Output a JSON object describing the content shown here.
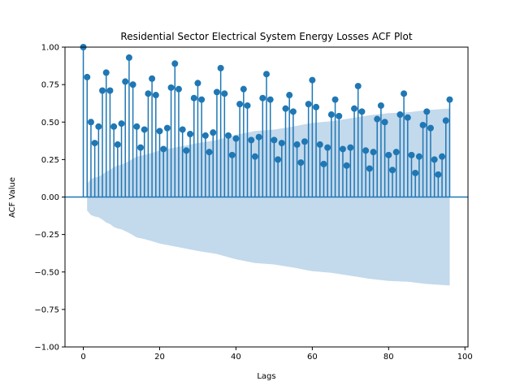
{
  "chart_data": {
    "type": "stem",
    "title": "Residential Sector Electrical System Energy Losses ACF Plot",
    "xlabel": "Lags",
    "ylabel": "ACF Value",
    "xlim": [
      -4.8,
      100.8
    ],
    "ylim": [
      -1.0,
      1.0
    ],
    "xticks": [
      0,
      20,
      40,
      60,
      80,
      100
    ],
    "yticks": [
      -1.0,
      -0.75,
      -0.5,
      -0.25,
      0.0,
      0.25,
      0.5,
      0.75,
      1.0
    ],
    "xtick_labels": [
      "0",
      "20",
      "40",
      "60",
      "80",
      "100"
    ],
    "ytick_labels": [
      "−1.00",
      "−0.75",
      "−0.50",
      "−0.25",
      "0.00",
      "0.25",
      "0.50",
      "0.75",
      "1.00"
    ],
    "lags": [
      0,
      1,
      2,
      3,
      4,
      5,
      6,
      7,
      8,
      9,
      10,
      11,
      12,
      13,
      14,
      15,
      16,
      17,
      18,
      19,
      20,
      21,
      22,
      23,
      24,
      25,
      26,
      27,
      28,
      29,
      30,
      31,
      32,
      33,
      34,
      35,
      36,
      37,
      38,
      39,
      40,
      41,
      42,
      43,
      44,
      45,
      46,
      47,
      48,
      49,
      50,
      51,
      52,
      53,
      54,
      55,
      56,
      57,
      58,
      59,
      60,
      61,
      62,
      63,
      64,
      65,
      66,
      67,
      68,
      69,
      70,
      71,
      72,
      73,
      74,
      75,
      76,
      77,
      78,
      79,
      80,
      81,
      82,
      83,
      84,
      85,
      86,
      87,
      88,
      89,
      90,
      91,
      92,
      93,
      94,
      95,
      96
    ],
    "acf": [
      1.0,
      0.8,
      0.5,
      0.36,
      0.47,
      0.71,
      0.83,
      0.71,
      0.47,
      0.35,
      0.49,
      0.77,
      0.93,
      0.75,
      0.47,
      0.33,
      0.45,
      0.69,
      0.79,
      0.68,
      0.44,
      0.32,
      0.46,
      0.73,
      0.89,
      0.72,
      0.45,
      0.31,
      0.42,
      0.66,
      0.76,
      0.65,
      0.41,
      0.3,
      0.43,
      0.7,
      0.86,
      0.69,
      0.41,
      0.28,
      0.39,
      0.62,
      0.72,
      0.61,
      0.38,
      0.27,
      0.4,
      0.66,
      0.82,
      0.65,
      0.38,
      0.25,
      0.36,
      0.59,
      0.68,
      0.57,
      0.35,
      0.23,
      0.37,
      0.62,
      0.78,
      0.6,
      0.35,
      0.22,
      0.33,
      0.55,
      0.65,
      0.54,
      0.32,
      0.21,
      0.33,
      0.59,
      0.74,
      0.57,
      0.31,
      0.19,
      0.3,
      0.52,
      0.61,
      0.5,
      0.28,
      0.18,
      0.3,
      0.55,
      0.69,
      0.53,
      0.28,
      0.16,
      0.27,
      0.48,
      0.57,
      0.46,
      0.25,
      0.15,
      0.27,
      0.51,
      0.65
    ],
    "confidence_band": {
      "lags": [
        1,
        2,
        3,
        4,
        5,
        6,
        7,
        8,
        9,
        10,
        12,
        14,
        16,
        18,
        20,
        25,
        30,
        35,
        40,
        45,
        50,
        55,
        60,
        65,
        70,
        75,
        80,
        85,
        90,
        96
      ],
      "upper": [
        0.09,
        0.12,
        0.13,
        0.135,
        0.15,
        0.17,
        0.18,
        0.2,
        0.21,
        0.215,
        0.24,
        0.27,
        0.28,
        0.295,
        0.31,
        0.335,
        0.36,
        0.38,
        0.415,
        0.44,
        0.45,
        0.47,
        0.495,
        0.505,
        0.525,
        0.545,
        0.56,
        0.565,
        0.58,
        0.59
      ]
    },
    "colors": {
      "stem": "#1f77b4",
      "band": "#c3d9ec",
      "zero_line": "#1f77b4"
    }
  }
}
